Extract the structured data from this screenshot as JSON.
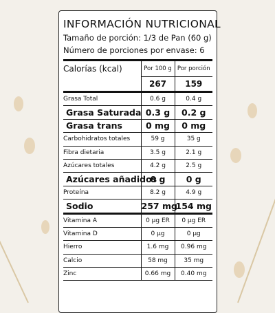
{
  "header": {
    "title": "INFORMACIÓN NUTRICIONAL",
    "serving_size": "Tamaño de porción: 1/3 de Pan (60 g)",
    "servings": "Número de porciones por envase: 6"
  },
  "table": {
    "columns": [
      "Calorías (kcal)",
      "Por 100 g",
      "Por porción"
    ],
    "calories": [
      "267",
      "159"
    ],
    "rows": [
      [
        "Grasa Total",
        "0.6 g",
        "0.4 g"
      ],
      [
        "Grasa Saturada",
        "0.3 g",
        "0.2 g"
      ],
      [
        "Grasa trans",
        "0 mg",
        "0 mg"
      ],
      [
        "Carbohidratos totales",
        "59 g",
        "35 g"
      ],
      [
        "Fibra dietaria",
        "3.5 g",
        "2.1 g"
      ],
      [
        "Azúcares totales",
        "4.2 g",
        "2.5 g"
      ],
      [
        "Azúcares añadidos",
        "0 g",
        "0 g"
      ],
      [
        "Proteína",
        "8.2 g",
        "4.9 g"
      ],
      [
        "Sodio",
        "257 mg",
        "154 mg"
      ],
      [
        "Vitamina A",
        "0 µg ER",
        "0 µg ER"
      ],
      [
        "Vitamina D",
        "0 µg",
        "0 µg"
      ],
      [
        "Hierro",
        "1.6 mg",
        "0.96 mg"
      ],
      [
        "Calcio",
        "58 mg",
        "35 mg"
      ],
      [
        "Zinc",
        "0.66 mg",
        "0.40 mg"
      ]
    ]
  }
}
